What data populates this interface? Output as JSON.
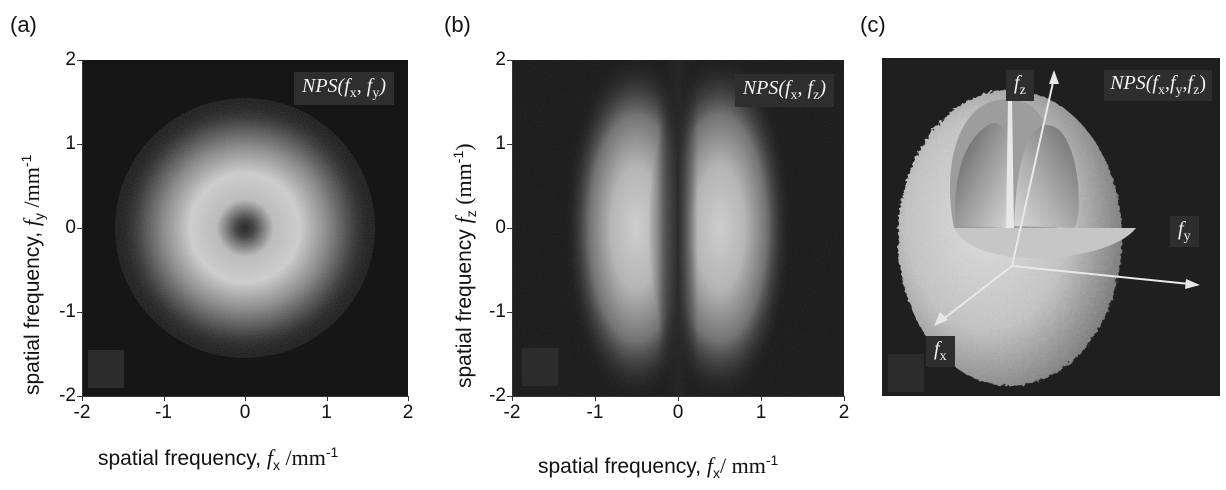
{
  "panels": [
    {
      "letter": "(a)",
      "xlabel_text": "spatial frequency, ",
      "xlabel_sym": "f",
      "xlabel_sub": "x",
      "xlabel_unit": " /mm",
      "xlabel_sup": "-1",
      "ylabel_text": "spatial frequency, ",
      "ylabel_sym": "f",
      "ylabel_sub": "y",
      "ylabel_unit": " /mm",
      "ylabel_sup": "-1",
      "inset": {
        "main": "NPS(",
        "a": "f",
        "a_sub": "x",
        "sep": ", ",
        "b": "f",
        "b_sub": "y",
        "close": ")"
      }
    },
    {
      "letter": "(b)",
      "xlabel_text": "spatial frequency, ",
      "xlabel_sym": "f",
      "xlabel_sub": "x",
      "xlabel_unit": "/ mm",
      "xlabel_sup": "-1",
      "ylabel_text": "spatial frequency ",
      "ylabel_sym": "f",
      "ylabel_sub": "z",
      "ylabel_unit": " (mm",
      "ylabel_sup": "-1",
      "ylabel_close": ")",
      "inset": {
        "main": "NPS(",
        "a": "f",
        "a_sub": "x",
        "sep": ", ",
        "b": "f",
        "b_sub": "z",
        "close": ")"
      }
    },
    {
      "letter": "(c)",
      "inset": "NPS(f",
      "inset_x": "x",
      "inset_y": "y",
      "inset_z": "z",
      "axis_fz": "f",
      "axis_fz_sub": "z",
      "axis_fy": "f",
      "axis_fy_sub": "y",
      "axis_fx": "f",
      "axis_fx_sub": "x"
    }
  ],
  "chart_data": [
    {
      "type": "heatmap",
      "title": "",
      "xlabel": "spatial frequency, f_x /mm-1",
      "ylabel": "spatial frequency, f_y /mm-1",
      "xlim": [
        -2,
        2
      ],
      "ylim": [
        -2,
        2
      ],
      "xticks": [
        "-2",
        "-1",
        "0",
        "1",
        "2"
      ],
      "yticks": [
        "2",
        "1",
        "0",
        "-1",
        "-2"
      ],
      "pattern": "ring",
      "peak_radius": 0.6,
      "annotation": "NPS(fx, fy)"
    },
    {
      "type": "heatmap",
      "title": "",
      "xlabel": "spatial frequency, f_x/ mm-1",
      "ylabel": "spatial frequency f_z (mm-1)",
      "xlim": [
        -2,
        2
      ],
      "ylim": [
        -2,
        2
      ],
      "xticks": [
        "-2",
        "-1",
        "0",
        "1",
        "2"
      ],
      "yticks": [
        "2",
        "1",
        "0",
        "-1",
        "-2"
      ],
      "pattern": "two-lobes",
      "lobe_centers_fx": [
        -0.5,
        0.5
      ],
      "annotation": "NPS(fx, fz)"
    }
  ]
}
